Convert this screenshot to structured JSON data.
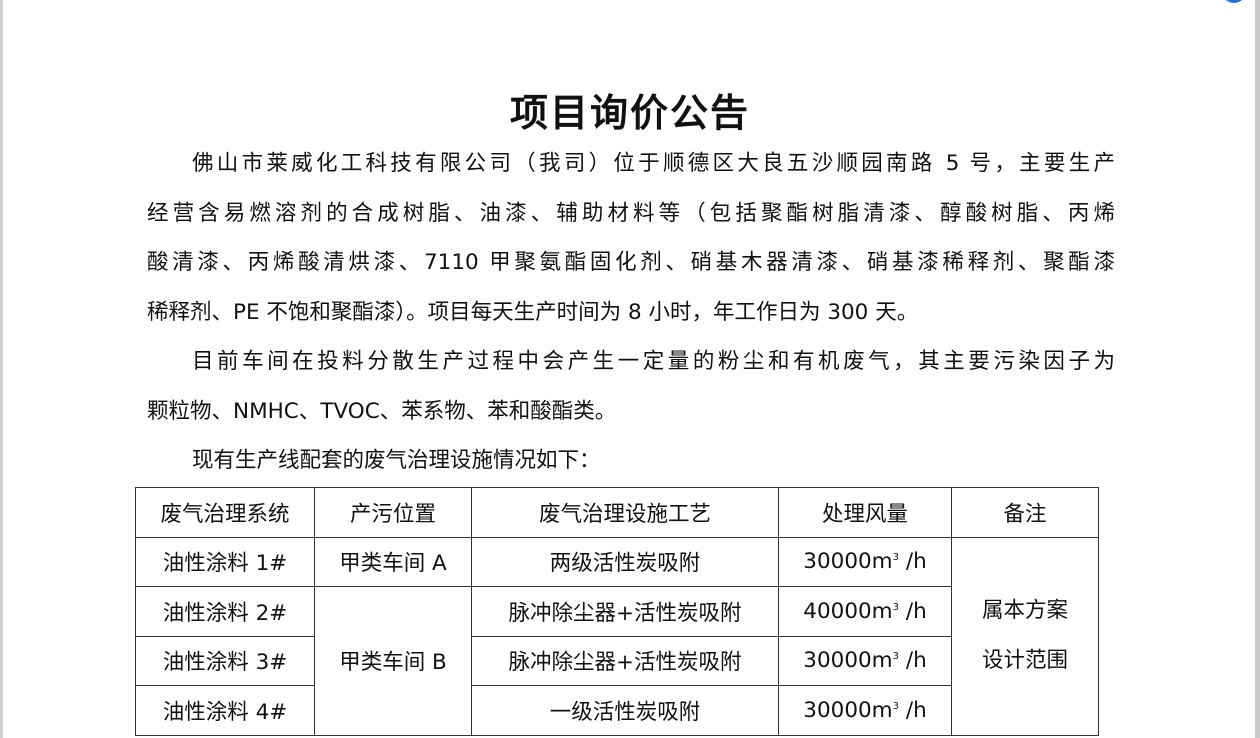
{
  "title": "项目询价公告",
  "paragraphs": [
    {
      "lines": [
        "佛山市莱威化工科技有限公司（我司）位于顺德区大良五沙顺园南路 5 号，主要生产",
        "经营含易燃溶剂的合成树脂、油漆、辅助材料等（包括聚酯树脂清漆、醇酸树脂、丙烯",
        "酸清漆、丙烯酸清烘漆、7110 甲聚氨酯固化剂、硝基木器清漆、硝基漆稀释剂、聚酯漆",
        "稀释剂、PE 不饱和聚酯漆）。项目每天生产时间为 8 小时，年工作日为 300 天。"
      ]
    },
    {
      "lines": [
        "目前车间在投料分散生产过程中会产生一定量的粉尘和有机废气，其主要污染因子为",
        "颗粒物、NMHC、TVOC、苯系物、苯和酸酯类。"
      ]
    },
    {
      "lines": [
        "现有生产线配套的废气治理设施情况如下："
      ]
    }
  ],
  "table": {
    "headers": [
      "废气治理系统",
      "产污位置",
      "废气治理设施工艺",
      "处理风量",
      "备注"
    ],
    "rows": [
      {
        "system": "油性涂料  1#",
        "process": "两级活性炭吸附",
        "flow": "30000m",
        "unit": "/h"
      },
      {
        "system": "油性涂料  2#",
        "process": "脉冲除尘器+活性炭吸附",
        "flow": "40000m",
        "unit": "/h"
      },
      {
        "system": "油性涂料  3#",
        "process": "脉冲除尘器+活性炭吸附",
        "flow": "30000m",
        "unit": "/h"
      },
      {
        "system": "油性涂料  4#",
        "process": "一级活性炭吸附",
        "flow": "30000m",
        "unit": "/h"
      }
    ],
    "location_a": "甲类车间 A",
    "location_b": "甲类车间 B",
    "superscript": "3",
    "remark_line1": "属本方案",
    "remark_line2": "设计范围"
  }
}
